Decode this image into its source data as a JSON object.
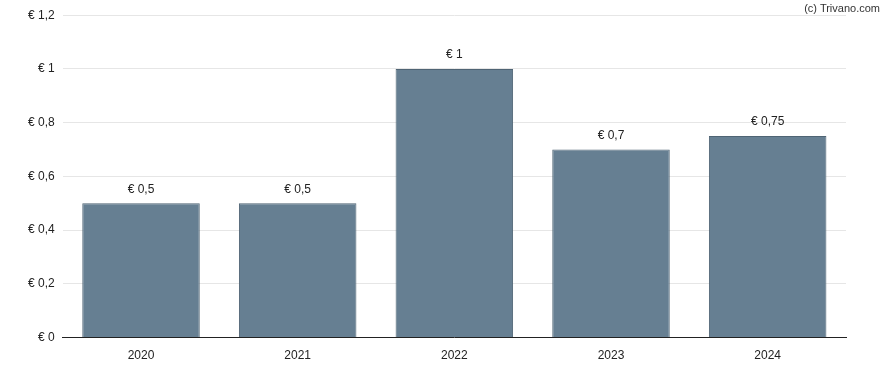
{
  "chart_data": {
    "type": "bar",
    "categories": [
      "2020",
      "2021",
      "2022",
      "2023",
      "2024"
    ],
    "values": [
      0.5,
      0.5,
      1,
      0.7,
      0.75
    ],
    "value_labels": [
      "€ 0,5",
      "€ 0,5",
      "€ 1",
      "€ 0,7",
      "€ 0,75"
    ],
    "data_labels": true,
    "color": "#667f92",
    "ylim": [
      0,
      1.2
    ],
    "yticks": [
      {
        "value": 0,
        "label": "€ 0"
      },
      {
        "value": 0.2,
        "label": "€ 0,2"
      },
      {
        "value": 0.4,
        "label": "€ 0,4"
      },
      {
        "value": 0.6,
        "label": "€ 0,6"
      },
      {
        "value": 0.8,
        "label": "€ 0,8"
      },
      {
        "value": 1,
        "label": "€ 1"
      },
      {
        "value": 1.2,
        "label": "€ 1,2"
      }
    ],
    "grid": true,
    "annotations": [
      "(c) Trivano.com"
    ]
  }
}
